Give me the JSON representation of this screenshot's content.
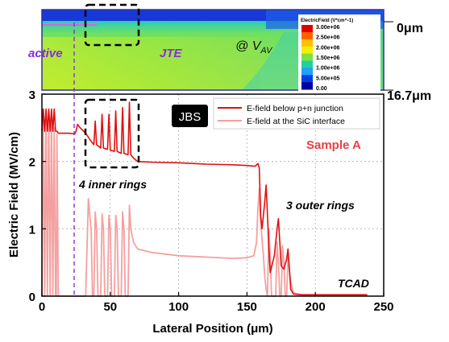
{
  "chart_data": {
    "type": "line",
    "xlabel": "Lateral Position (μm)",
    "ylabel": "Electric Field (MV/cm)",
    "xlim": [
      0,
      250
    ],
    "ylim": [
      0,
      3
    ],
    "xticks": [
      "0",
      "50",
      "100",
      "150",
      "200",
      "250"
    ],
    "yticks": [
      "0",
      "1",
      "2",
      "3"
    ],
    "grid": true,
    "legend_position": "top-right",
    "legend": {
      "badge": "JBS",
      "entries": [
        "E-field below p+n junction",
        "E-field at the SiC interface"
      ]
    },
    "series": [
      {
        "name": "E-field below p+n junction",
        "color": "#e01010",
        "points": [
          [
            0,
            2.45
          ],
          [
            1,
            2.78
          ],
          [
            2,
            2.45
          ],
          [
            3,
            2.78
          ],
          [
            4,
            2.45
          ],
          [
            5,
            2.78
          ],
          [
            6,
            2.45
          ],
          [
            7,
            2.78
          ],
          [
            8,
            2.45
          ],
          [
            9,
            2.78
          ],
          [
            10,
            2.45
          ],
          [
            11,
            2.45
          ],
          [
            12,
            2.42
          ],
          [
            14,
            2.42
          ],
          [
            20,
            2.42
          ],
          [
            24,
            2.41
          ],
          [
            25,
            2.45
          ],
          [
            26,
            2.55
          ],
          [
            28,
            2.5
          ],
          [
            32,
            2.42
          ],
          [
            36,
            2.3
          ],
          [
            38,
            2.25
          ],
          [
            39,
            2.6
          ],
          [
            40,
            2.25
          ],
          [
            43,
            2.2
          ],
          [
            44,
            2.7
          ],
          [
            45,
            2.2
          ],
          [
            48,
            2.18
          ],
          [
            49,
            2.7
          ],
          [
            50,
            2.17
          ],
          [
            53,
            2.15
          ],
          [
            54,
            2.75
          ],
          [
            55,
            2.15
          ],
          [
            58,
            2.12
          ],
          [
            59,
            2.8
          ],
          [
            60,
            2.12
          ],
          [
            63,
            2.1
          ],
          [
            64,
            2.88
          ],
          [
            65,
            2.1
          ],
          [
            67,
            2.05
          ],
          [
            70,
            2.0
          ],
          [
            80,
            1.99
          ],
          [
            100,
            1.98
          ],
          [
            120,
            1.96
          ],
          [
            140,
            1.95
          ],
          [
            150,
            1.94
          ],
          [
            156,
            1.93
          ],
          [
            158,
            1.97
          ],
          [
            159,
            1.9
          ],
          [
            160,
            1.2
          ],
          [
            161,
            1.0
          ],
          [
            163,
            1.4
          ],
          [
            164,
            1.65
          ],
          [
            165,
            1.2
          ],
          [
            166,
            0.7
          ],
          [
            167,
            0.35
          ],
          [
            170,
            0.6
          ],
          [
            172,
            1.0
          ],
          [
            173,
            1.15
          ],
          [
            174,
            0.8
          ],
          [
            175,
            0.45
          ],
          [
            177,
            0.4
          ],
          [
            179,
            0.55
          ],
          [
            180,
            0.7
          ],
          [
            181,
            0.4
          ],
          [
            182,
            0.1
          ],
          [
            184,
            0.03
          ],
          [
            190,
            0.02
          ],
          [
            220,
            0.02
          ],
          [
            238,
            0.02
          ]
        ]
      },
      {
        "name": "E-field at the SiC interface",
        "color": "#f4a0a0",
        "points": [
          [
            0,
            0
          ],
          [
            1,
            2.75
          ],
          [
            2,
            0
          ],
          [
            3,
            2.75
          ],
          [
            4,
            0
          ],
          [
            5,
            2.75
          ],
          [
            6,
            0
          ],
          [
            7,
            2.75
          ],
          [
            8,
            0
          ],
          [
            9,
            2.5
          ],
          [
            10,
            0
          ],
          [
            10.5,
            0
          ],
          [
            11,
            2.4
          ],
          [
            12,
            0
          ],
          [
            32,
            0
          ],
          [
            34,
            1.45
          ],
          [
            35,
            1.2
          ],
          [
            36,
            1.0
          ],
          [
            37,
            0
          ],
          [
            38,
            0
          ],
          [
            39,
            1.25
          ],
          [
            40,
            1.0
          ],
          [
            41,
            0
          ],
          [
            43,
            0
          ],
          [
            44,
            1.22
          ],
          [
            45,
            1.0
          ],
          [
            46,
            0
          ],
          [
            48,
            0
          ],
          [
            49,
            1.2
          ],
          [
            50,
            1.0
          ],
          [
            51,
            0
          ],
          [
            53,
            0
          ],
          [
            54,
            1.2
          ],
          [
            55,
            1.0
          ],
          [
            56,
            0
          ],
          [
            58,
            0
          ],
          [
            59,
            1.25
          ],
          [
            60,
            1.0
          ],
          [
            61,
            0
          ],
          [
            63,
            0
          ],
          [
            64,
            1.35
          ],
          [
            65,
            1.0
          ],
          [
            67,
            0.8
          ],
          [
            70,
            0.7
          ],
          [
            80,
            0.65
          ],
          [
            100,
            0.6
          ],
          [
            120,
            0.58
          ],
          [
            140,
            0.56
          ],
          [
            150,
            0.57
          ],
          [
            155,
            0.6
          ],
          [
            157,
            0.8
          ],
          [
            158,
            1.3
          ],
          [
            159,
            1.6
          ],
          [
            160,
            1.1
          ],
          [
            162,
            0.6
          ],
          [
            163,
            0.3
          ],
          [
            164,
            0.1
          ],
          [
            165,
            0
          ],
          [
            166,
            1.0
          ],
          [
            167,
            0.6
          ],
          [
            168,
            0
          ],
          [
            171,
            0
          ],
          [
            172,
            0.8
          ],
          [
            173,
            0.5
          ],
          [
            174,
            0
          ],
          [
            175,
            0
          ],
          [
            176,
            0.75
          ],
          [
            177,
            0.5
          ],
          [
            178,
            0
          ],
          [
            179,
            0
          ],
          [
            180,
            0.6
          ],
          [
            181,
            0.4
          ],
          [
            182,
            0.2
          ],
          [
            184,
            0.05
          ],
          [
            190,
            0.02
          ],
          [
            220,
            0.02
          ],
          [
            238,
            0.02
          ]
        ]
      }
    ],
    "annotations": {
      "sample": "Sample A",
      "inner_rings": "4 inner rings",
      "outer_rings": "3 outer rings",
      "method": "TCAD"
    }
  },
  "inset": {
    "region_active": "active",
    "region_jte": "JTE",
    "bias_label_main": "@ V",
    "bias_label_sub": "AV",
    "depth_top": "0μm",
    "depth_bottom": "16.7μm",
    "colorbar": {
      "title": "ElectricField (V*cm^-1)",
      "labels": [
        "3.00e+06",
        "2.50e+06",
        "2.00e+06",
        "1.50e+06",
        "1.00e+06",
        "5.00e+05",
        "0.00"
      ],
      "colors": [
        "#e00000",
        "#ff6000",
        "#ffc000",
        "#f0f000",
        "#80e040",
        "#20d0a0",
        "#20a0ff",
        "#0040e0",
        "#0000a0"
      ]
    }
  },
  "colors": {
    "junction": "#e01010",
    "interface": "#f4a0a0",
    "annotation_red": "#e84040",
    "annotation_purple": "#8a2be2"
  }
}
